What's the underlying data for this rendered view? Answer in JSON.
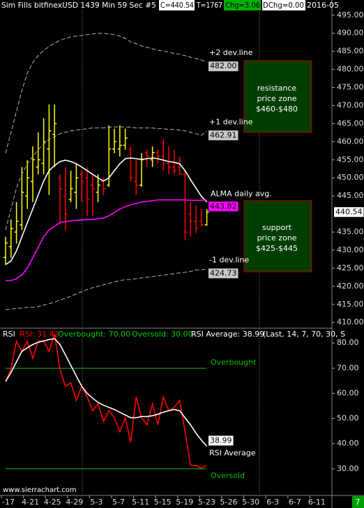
{
  "header": {
    "title": "Sim Fills  bitfinexUSD  1439 Min 59 Sec  #5",
    "close": "C=440.54",
    "trades": "T=1767",
    "change": "Chg=3.06",
    "dchange": "DChg=0.00",
    "date": "2016-05"
  },
  "zones": [
    {
      "label": [
        "resistance",
        "price zone",
        "$460-$480"
      ]
    },
    {
      "label": [
        "support",
        "price zone",
        "$425-$445"
      ]
    }
  ],
  "watermark": "www.sierrachart.com",
  "corner": "7",
  "x_labels": [
    "-17",
    "4-21",
    "4-25",
    "4-29",
    "5-3",
    "5-7",
    "5-11",
    "5-15",
    "5-19",
    "5-23",
    "5-26",
    "5-30",
    "6-3",
    "6-7",
    "6-11"
  ],
  "chart_data": [
    {
      "type": "ohlc",
      "up_color": "#ffff00",
      "down_color": "#ff0000",
      "last_label": "440.54",
      "ylim": [
        408.6,
        499.2
      ],
      "yticks": [
        {
          "value": 410,
          "label": "410.00"
        },
        {
          "value": 415,
          "label": "415.00"
        },
        {
          "value": 420,
          "label": "420.00"
        },
        {
          "value": 425,
          "label": "425.00"
        },
        {
          "value": 430,
          "label": "430.00"
        },
        {
          "value": 435,
          "label": "435.00"
        },
        {
          "value": 445,
          "label": "445.00"
        },
        {
          "value": 450,
          "label": "450.00"
        },
        {
          "value": 455,
          "label": "455.00"
        },
        {
          "value": 460,
          "label": "460.00"
        },
        {
          "value": 465,
          "label": "465.00"
        },
        {
          "value": 470,
          "label": "470.00"
        },
        {
          "value": 475,
          "label": "475.00"
        },
        {
          "value": 480,
          "label": "480.00"
        },
        {
          "value": 485,
          "label": "485.00"
        },
        {
          "value": 490,
          "label": "490.00"
        },
        {
          "value": 495,
          "label": "495.00"
        }
      ],
      "ohlc": [
        [
          428,
          433.7,
          426,
          432
        ],
        [
          431,
          438.5,
          427.9,
          436
        ],
        [
          435,
          443.3,
          431.8,
          438
        ],
        [
          437,
          453,
          435.6,
          446
        ],
        [
          445,
          454.9,
          441.4,
          450
        ],
        [
          449,
          458.7,
          443.3,
          455
        ],
        [
          453,
          462.6,
          451,
          455
        ],
        [
          454,
          466.5,
          451,
          460
        ],
        [
          458,
          470.3,
          445.3,
          463
        ],
        [
          462,
          470.3,
          453,
          465
        ],
        [
          450,
          451,
          437.6,
          447
        ],
        [
          445,
          453,
          435.6,
          440
        ],
        [
          444,
          452,
          443.3,
          447
        ],
        [
          446,
          453.9,
          441.4,
          450
        ],
        [
          451,
          452,
          443.3,
          449
        ],
        [
          450,
          453,
          439.5,
          444
        ],
        [
          448,
          451,
          439.5,
          447
        ],
        [
          446,
          451,
          443.3,
          448
        ],
        [
          449,
          450,
          445.3,
          447
        ],
        [
          448,
          464.5,
          447.5,
          458
        ],
        [
          458,
          463.6,
          456.8,
          460
        ],
        [
          458,
          464.5,
          455.9,
          459
        ],
        [
          459,
          463.6,
          457.8,
          461
        ],
        [
          458,
          458.7,
          449,
          450
        ],
        [
          449,
          454.9,
          445.3,
          448
        ],
        [
          448,
          456.8,
          447.5,
          455
        ],
        [
          457,
          457.8,
          453,
          456
        ],
        [
          455,
          458.7,
          453,
          457
        ],
        [
          457,
          457.8,
          453.9,
          456
        ],
        [
          456,
          460.7,
          452,
          454
        ],
        [
          454,
          458.7,
          451,
          453
        ],
        [
          453,
          457.8,
          451,
          452
        ],
        [
          453,
          455.9,
          451,
          451
        ],
        [
          451,
          452,
          432.7,
          435
        ],
        [
          440,
          443.3,
          433.7,
          438
        ],
        [
          438,
          442.4,
          434.7,
          436
        ],
        [
          438,
          441.4,
          436.6,
          437
        ],
        [
          437,
          441.4,
          436.8,
          440.54
        ]
      ],
      "series": [
        {
          "color": "#ffffff",
          "values": [
            426.0,
            427.0,
            429.8,
            433.7,
            437.6,
            441.4,
            445.3,
            449.1,
            452.0,
            453.4,
            454.5,
            454.9,
            454.5,
            453.9,
            453.0,
            452.0,
            451.0,
            450.0,
            449.1,
            450.0,
            452.0,
            453.9,
            455.3,
            455.5,
            455.3,
            455.1,
            455.3,
            455.5,
            455.3,
            454.9,
            454.5,
            454.3,
            453.9,
            452.0,
            449.5,
            447.2,
            444.9,
            443.3
          ]
        },
        {
          "name": "ALMA daily avg.",
          "color": "#ff00ff",
          "last_label": "443.82",
          "values": [
            421.6,
            421.6,
            422.1,
            423.1,
            425.0,
            427.9,
            430.8,
            433.7,
            435.6,
            436.6,
            437.6,
            437.9,
            438.1,
            438.3,
            438.3,
            438.5,
            438.5,
            438.7,
            438.9,
            439.5,
            440.4,
            441.4,
            442.0,
            442.6,
            442.9,
            443.3,
            443.5,
            443.7,
            443.9,
            443.9,
            443.9,
            443.9,
            443.9,
            443.9,
            443.8,
            443.8,
            443.8,
            443.82
          ]
        },
        {
          "name": "+2 dev.line",
          "color": "#b0b0b0",
          "last_label": "482.00",
          "values": [
            456.8,
            462.6,
            468.4,
            474.2,
            479.0,
            481.9,
            483.8,
            485.3,
            486.3,
            487.3,
            488.0,
            488.6,
            489.0,
            489.2,
            489.4,
            489.6,
            489.8,
            490.0,
            490.0,
            489.8,
            489.6,
            489.2,
            488.6,
            487.6,
            487.1,
            486.5,
            486.1,
            485.7,
            485.3,
            485.1,
            484.8,
            484.4,
            484.2,
            483.8,
            483.4,
            483.0,
            482.6,
            482.0
          ]
        },
        {
          "name": "+1 dev.line",
          "color": "#b0b0b0",
          "last_label": "462.91",
          "values": [
            435.6,
            441.4,
            447.2,
            451.0,
            453.9,
            455.9,
            457.8,
            459.3,
            460.7,
            461.4,
            462.2,
            462.6,
            463.0,
            463.2,
            463.4,
            463.6,
            463.8,
            463.8,
            463.8,
            464.0,
            464.1,
            464.1,
            464.1,
            464.0,
            463.8,
            463.8,
            463.8,
            463.8,
            463.6,
            463.6,
            463.4,
            463.4,
            463.2,
            463.0,
            462.6,
            462.2,
            461.8,
            462.91
          ]
        },
        {
          "name": "-1 dev.line",
          "color": "#b0b0b0",
          "last_label": "424.73",
          "values": [
            413.5,
            413.7,
            413.9,
            414.0,
            414.2,
            414.2,
            414.4,
            414.8,
            415.2,
            415.6,
            416.2,
            416.7,
            417.3,
            417.9,
            418.5,
            419.1,
            419.6,
            420.0,
            420.4,
            420.8,
            421.2,
            421.6,
            421.8,
            421.9,
            422.1,
            422.3,
            422.5,
            422.7,
            422.9,
            423.1,
            423.3,
            423.5,
            423.7,
            423.9,
            424.1,
            424.5,
            424.6,
            424.73
          ]
        }
      ]
    },
    {
      "type": "line",
      "title": "RSI",
      "legend": [
        "RSI: 31.42",
        "Overbought: 70.00",
        "Oversold: 30.00",
        "RSI Average: 38.99",
        "(Last, 14, 7, 70, 30, S"
      ],
      "ylim": [
        19.7,
        85.6
      ],
      "yticks": [
        {
          "value": 30,
          "label": "30.00"
        },
        {
          "value": 40,
          "label": "40.00"
        },
        {
          "value": 50,
          "label": "50.00"
        },
        {
          "value": 60,
          "label": "60.00"
        },
        {
          "value": 70,
          "label": "70.00"
        },
        {
          "value": 80,
          "label": "80.00"
        }
      ],
      "levels": [
        {
          "name": "Overbought",
          "value": 70,
          "color": "#00c000"
        },
        {
          "name": "Oversold",
          "value": 30,
          "color": "#00c000"
        }
      ],
      "series": [
        {
          "color": "#ff0000",
          "values": [
            64.7,
            69.7,
            80.8,
            76.7,
            80.8,
            73.9,
            80.8,
            80.8,
            76.7,
            83.6,
            69.7,
            62.8,
            64.2,
            57.2,
            62.8,
            58.6,
            53.1,
            55.8,
            48.9,
            53.1,
            50.3,
            44.7,
            50.3,
            40.6,
            58.6,
            50.3,
            47.5,
            55.8,
            47.5,
            58.6,
            53.1,
            54.4,
            57.2,
            44.7,
            31.4,
            31.4,
            30.3,
            31.42
          ]
        },
        {
          "name": "RSI Average",
          "color": "#ffffff",
          "last_label": "38.99",
          "values": [
            64.7,
            68.3,
            72.5,
            76.7,
            78.1,
            79.4,
            80.3,
            80.8,
            81.4,
            81.7,
            79.4,
            75.3,
            71.1,
            66.9,
            62.8,
            60.0,
            58.1,
            56.4,
            55.3,
            54.4,
            53.6,
            52.5,
            51.4,
            50.3,
            50.3,
            50.8,
            50.8,
            51.1,
            51.7,
            52.5,
            53.1,
            53.6,
            53.1,
            50.3,
            47.5,
            44.2,
            41.4,
            38.99
          ]
        }
      ]
    }
  ]
}
